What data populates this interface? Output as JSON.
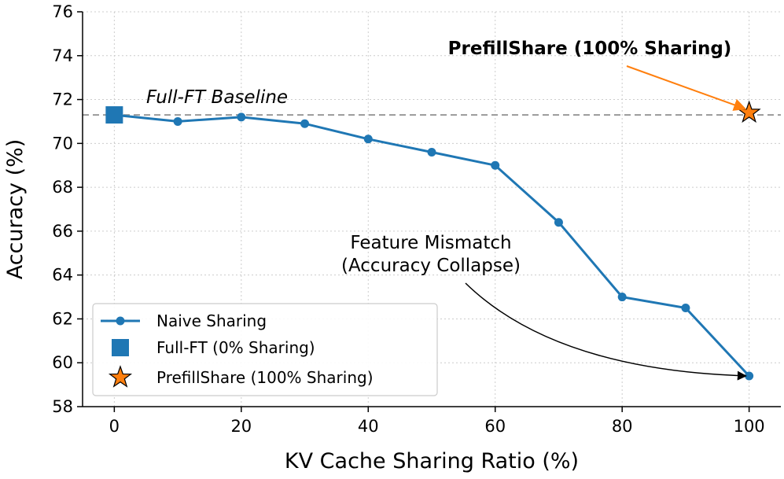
{
  "chart_data": {
    "type": "line",
    "xlabel": "KV Cache Sharing Ratio (%)",
    "ylabel": "Accuracy (%)",
    "xlim": [
      -5,
      105
    ],
    "ylim": [
      58,
      76
    ],
    "x_ticks": [
      "0",
      "20",
      "40",
      "60",
      "80",
      "100"
    ],
    "y_ticks": [
      "58",
      "60",
      "62",
      "64",
      "66",
      "68",
      "70",
      "72",
      "74",
      "76"
    ],
    "grid": true,
    "legend_position": "lower-left",
    "series": [
      {
        "name": "Naive Sharing",
        "marker": "circle",
        "color": "#1f77b4",
        "x": [
          0,
          10,
          20,
          30,
          40,
          50,
          60,
          70,
          80,
          90,
          100
        ],
        "y": [
          71.3,
          71.0,
          71.2,
          70.9,
          70.2,
          69.6,
          69.0,
          66.4,
          63.0,
          62.5,
          59.4
        ]
      },
      {
        "name": "Full-FT (0% Sharing)",
        "marker": "square",
        "color": "#1f77b4",
        "x": [
          0
        ],
        "y": [
          71.3
        ]
      },
      {
        "name": "PrefillShare (100% Sharing)",
        "marker": "star",
        "color": "#ff7f0e",
        "x": [
          100
        ],
        "y": [
          71.4
        ]
      }
    ],
    "baseline": {
      "label": "Full-FT Baseline",
      "value": 71.3,
      "color": "#999999"
    },
    "annotations": [
      {
        "lines": [
          "PrefillShare (100% Sharing)"
        ],
        "color": "#ff7f0e",
        "target_x": 100,
        "target_y": 71.4
      },
      {
        "lines": [
          "Feature Mismatch",
          "(Accuracy Collapse)"
        ],
        "color": "#000000",
        "target_x": 100,
        "target_y": 59.4
      }
    ]
  }
}
